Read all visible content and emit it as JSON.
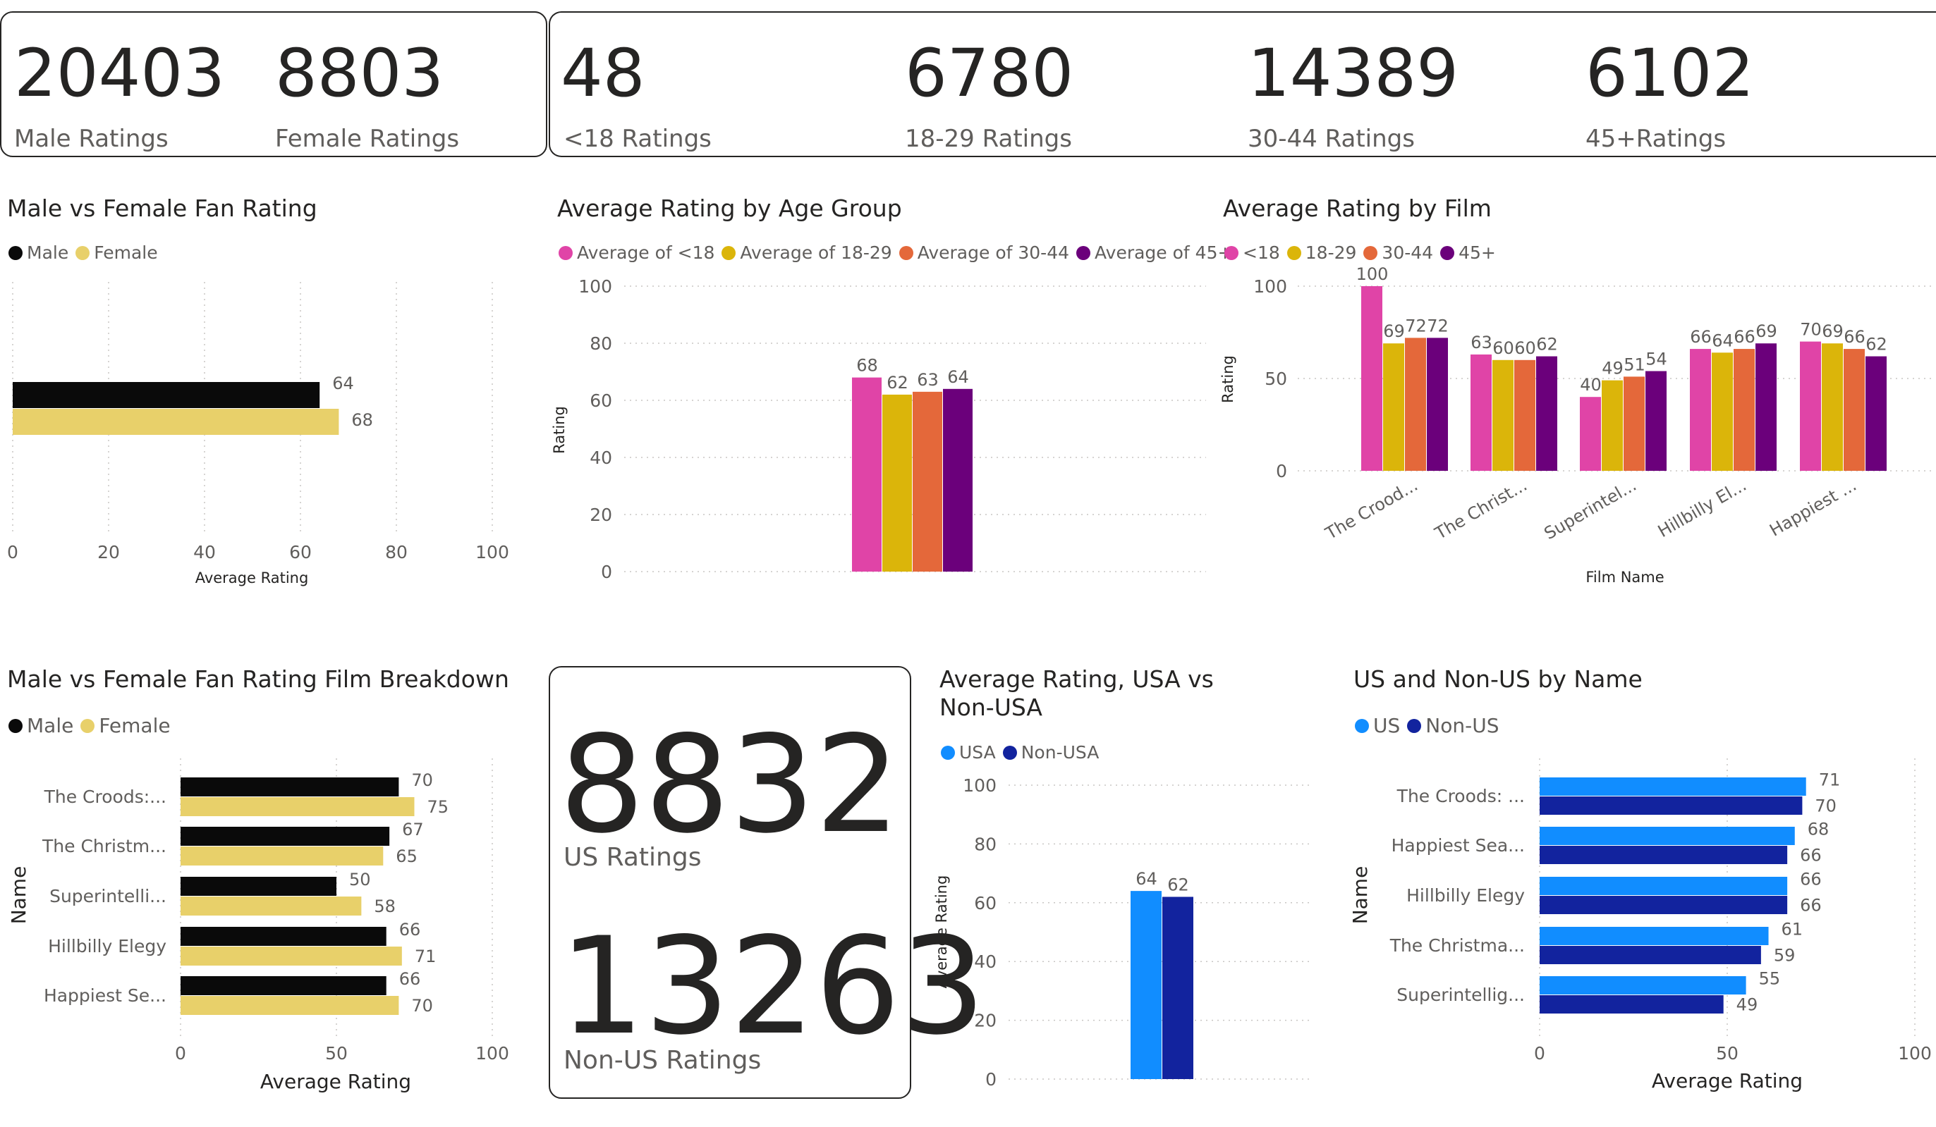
{
  "kpi_gender": [
    {
      "value": "20403",
      "label": "Male Ratings"
    },
    {
      "value": "8803",
      "label": "Female Ratings"
    }
  ],
  "kpi_age": [
    {
      "value": "48",
      "label": "<18 Ratings"
    },
    {
      "value": "6780",
      "label": "18-29 Ratings"
    },
    {
      "value": "14389",
      "label": "30-44 Ratings"
    },
    {
      "value": "6102",
      "label": "45+Ratings"
    }
  ],
  "kpi_region": [
    {
      "value": "8832",
      "label": "US Ratings"
    },
    {
      "value": "13263",
      "label": "Non-US Ratings"
    }
  ],
  "colors": {
    "male": "#0a0a0a",
    "female": "#e8d06a",
    "age_u18": "#e044a7",
    "age_18_29": "#dbb50a",
    "age_30_44": "#e4683a",
    "age_45": "#6b007b",
    "usa": "#118dff",
    "non_usa": "#12239e"
  },
  "chart_data": [
    {
      "id": "gender",
      "type": "bar",
      "orientation": "horizontal",
      "title": "Male vs Female Fan Rating",
      "legend": [
        "Male",
        "Female"
      ],
      "categories": [
        ""
      ],
      "series": [
        {
          "name": "Male",
          "values": [
            64
          ]
        },
        {
          "name": "Female",
          "values": [
            68
          ]
        }
      ],
      "xlabel": "Average Rating",
      "ylabel": "",
      "xlim": [
        0,
        100
      ],
      "ticks": [
        "0",
        "20",
        "40",
        "60",
        "80",
        "100"
      ]
    },
    {
      "id": "age",
      "type": "bar",
      "orientation": "vertical",
      "title": "Average Rating by Age Group",
      "legend": [
        "Average of <18",
        "Average of 18-29",
        "Average of 30-44",
        "Average of 45+"
      ],
      "categories": [
        ""
      ],
      "series": [
        {
          "name": "Average of <18",
          "values": [
            68
          ]
        },
        {
          "name": "Average of 18-29",
          "values": [
            62
          ]
        },
        {
          "name": "Average of 30-44",
          "values": [
            63
          ]
        },
        {
          "name": "Average of 45+",
          "values": [
            64
          ]
        }
      ],
      "xlabel": "",
      "ylabel": "Rating",
      "ylim": [
        0,
        100
      ],
      "ticks": [
        "0",
        "20",
        "40",
        "60",
        "80",
        "100"
      ]
    },
    {
      "id": "film",
      "type": "bar",
      "orientation": "vertical",
      "title": "Average Rating by Film",
      "legend": [
        "<18",
        "18-29",
        "30-44",
        "45+"
      ],
      "categories": [
        "The Crood...",
        "The Christ...",
        "Superintel...",
        "Hillbilly El...",
        "Happiest ..."
      ],
      "series": [
        {
          "name": "<18",
          "values": [
            100,
            63,
            40,
            66,
            70
          ]
        },
        {
          "name": "18-29",
          "values": [
            69,
            60,
            49,
            64,
            69
          ]
        },
        {
          "name": "30-44",
          "values": [
            72,
            60,
            51,
            66,
            66
          ]
        },
        {
          "name": "45+",
          "values": [
            72,
            62,
            54,
            69,
            62
          ]
        }
      ],
      "xlabel": "Film Name",
      "ylabel": "Rating",
      "ylim": [
        0,
        100
      ],
      "ticks": [
        "0",
        "50",
        "100"
      ]
    },
    {
      "id": "gender_film",
      "type": "bar",
      "orientation": "horizontal",
      "title": "Male vs Female Fan Rating Film Breakdown",
      "legend": [
        "Male",
        "Female"
      ],
      "categories": [
        "The Croods:...",
        "The Christm...",
        "Superintelli...",
        "Hillbilly Elegy",
        "Happiest Se..."
      ],
      "series": [
        {
          "name": "Male",
          "values": [
            70,
            67,
            50,
            66,
            66
          ]
        },
        {
          "name": "Female",
          "values": [
            75,
            65,
            58,
            71,
            70
          ]
        }
      ],
      "xlabel": "Average Rating",
      "ylabel": "Name",
      "xlim": [
        0,
        100
      ],
      "ticks": [
        "0",
        "50",
        "100"
      ]
    },
    {
      "id": "usa",
      "type": "bar",
      "orientation": "vertical",
      "title": "Average Rating, USA vs Non-USA",
      "legend": [
        "USA",
        "Non-USA"
      ],
      "categories": [
        ""
      ],
      "series": [
        {
          "name": "USA",
          "values": [
            64
          ]
        },
        {
          "name": "Non-USA",
          "values": [
            62
          ]
        }
      ],
      "xlabel": "",
      "ylabel": "Average Rating",
      "ylim": [
        0,
        100
      ],
      "ticks": [
        "0",
        "20",
        "40",
        "60",
        "80",
        "100"
      ]
    },
    {
      "id": "us_name",
      "type": "bar",
      "orientation": "horizontal",
      "title": "US and Non-US by Name",
      "legend": [
        "US",
        "Non-US"
      ],
      "categories": [
        "The Croods: ...",
        "Happiest Sea...",
        "Hillbilly Elegy",
        "The Christma...",
        "Superintellig..."
      ],
      "series": [
        {
          "name": "US",
          "values": [
            71,
            68,
            66,
            61,
            55
          ]
        },
        {
          "name": "Non-US",
          "values": [
            70,
            66,
            66,
            59,
            49
          ]
        }
      ],
      "xlabel": "Average Rating",
      "ylabel": "Name",
      "xlim": [
        0,
        100
      ],
      "ticks": [
        "0",
        "50",
        "100"
      ]
    }
  ]
}
